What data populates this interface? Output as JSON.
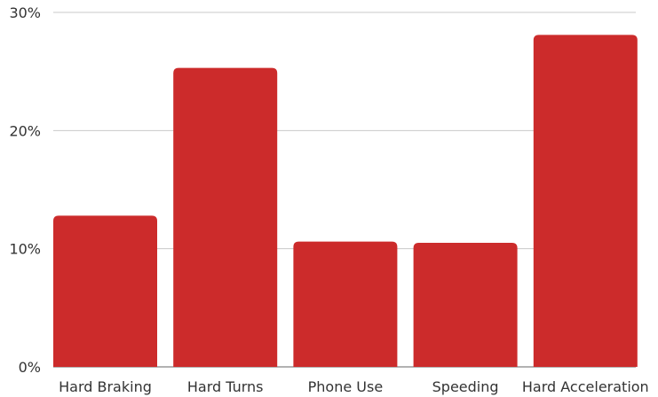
{
  "chart_data": {
    "type": "bar",
    "categories": [
      "Hard Braking",
      "Hard Turns",
      "Phone Use",
      "Speeding",
      "Hard Acceleration"
    ],
    "values": [
      12.8,
      25.3,
      10.6,
      10.5,
      28.1
    ],
    "title": "",
    "xlabel": "",
    "ylabel": "",
    "ylim": [
      0,
      30
    ],
    "yticks": [
      0,
      10,
      20,
      30
    ],
    "ytick_labels": [
      "0%",
      "10%",
      "20%",
      "30%"
    ],
    "grid": true,
    "bar_color": "#cc2b2b"
  }
}
